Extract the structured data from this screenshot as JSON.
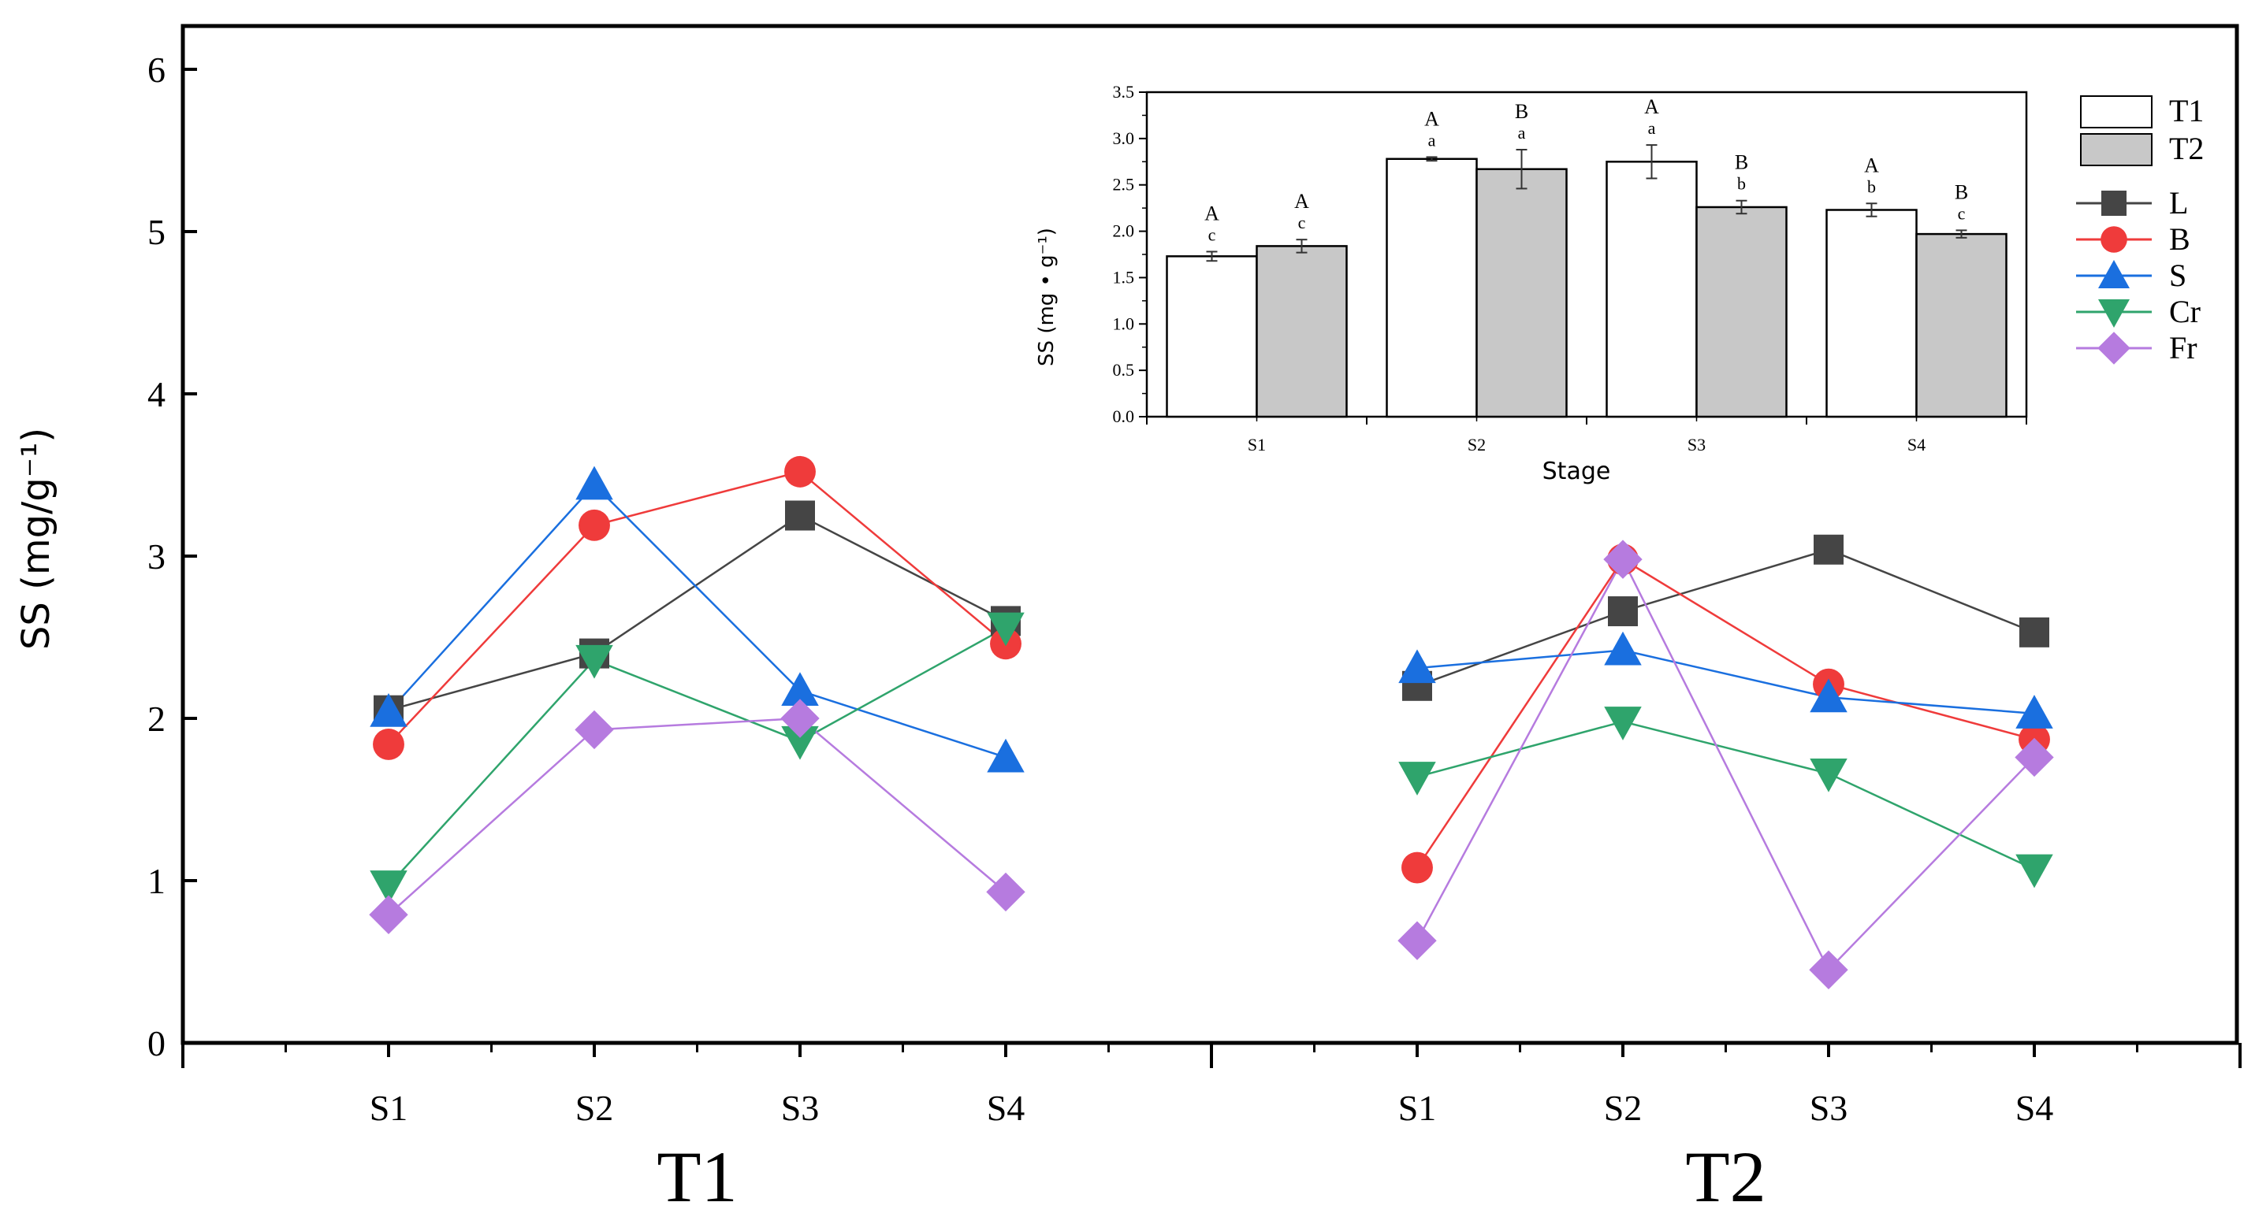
{
  "chart_data": [
    {
      "type": "line",
      "ylabel": "SS (mg/g⁻¹)",
      "ylim": [
        0,
        6
      ],
      "yticks": [
        "0",
        "1",
        "2",
        "3",
        "4",
        "5",
        "6"
      ],
      "groups": [
        "T1",
        "T2"
      ],
      "categories": [
        "S1",
        "S2",
        "S3",
        "S4"
      ],
      "grid": false,
      "legend_position": "right",
      "series": [
        {
          "name": "L",
          "marker": "square",
          "color": "#454545",
          "T1": [
            2.05,
            2.4,
            3.25,
            2.6
          ],
          "T2": [
            2.2,
            2.66,
            3.04,
            2.53
          ]
        },
        {
          "name": "B",
          "marker": "circle",
          "color": "#ef3b3b",
          "T1": [
            1.84,
            3.19,
            3.52,
            2.46
          ],
          "T2": [
            1.08,
            2.98,
            2.21,
            1.87
          ]
        },
        {
          "name": "S",
          "marker": "triangle-up",
          "color": "#1a6fdf",
          "T1": [
            2.04,
            3.44,
            2.17,
            1.76
          ],
          "T2": [
            2.31,
            2.42,
            2.13,
            2.03
          ]
        },
        {
          "name": "Cr",
          "marker": "triangle-down",
          "color": "#2fa46c",
          "T1": [
            0.97,
            2.36,
            1.86,
            2.56
          ],
          "T2": [
            1.64,
            1.98,
            1.66,
            1.07
          ]
        },
        {
          "name": "Fr",
          "marker": "diamond",
          "color": "#b67bdf",
          "T1": [
            0.79,
            1.93,
            2.0,
            0.93
          ],
          "T2": [
            0.63,
            2.98,
            0.45,
            1.76
          ]
        }
      ]
    },
    {
      "type": "bar",
      "xlabel": "Stage",
      "ylabel": "SS (mg • g⁻¹)",
      "ylim": [
        0,
        3.5
      ],
      "yticks": [
        "0.0",
        "0.5",
        "1.0",
        "1.5",
        "2.0",
        "2.5",
        "3.0",
        "3.5"
      ],
      "categories": [
        "S1",
        "S2",
        "S3",
        "S4"
      ],
      "grid": false,
      "legend_position": "right",
      "series": [
        {
          "name": "T1",
          "color": "#ffffff",
          "values": [
            1.73,
            2.78,
            2.75,
            2.23
          ],
          "errors": [
            0.05,
            0.02,
            0.18,
            0.07
          ],
          "upper_letters": [
            "A",
            "A",
            "A",
            "A"
          ],
          "lower_letters": [
            "c",
            "a",
            "a",
            "b"
          ]
        },
        {
          "name": "T2",
          "color": "#c8c8c8",
          "values": [
            1.84,
            2.67,
            2.26,
            1.97
          ],
          "errors": [
            0.07,
            0.21,
            0.07,
            0.04
          ],
          "upper_letters": [
            "A",
            "B",
            "B",
            "B"
          ],
          "lower_letters": [
            "c",
            "a",
            "b",
            "c"
          ]
        }
      ]
    }
  ]
}
